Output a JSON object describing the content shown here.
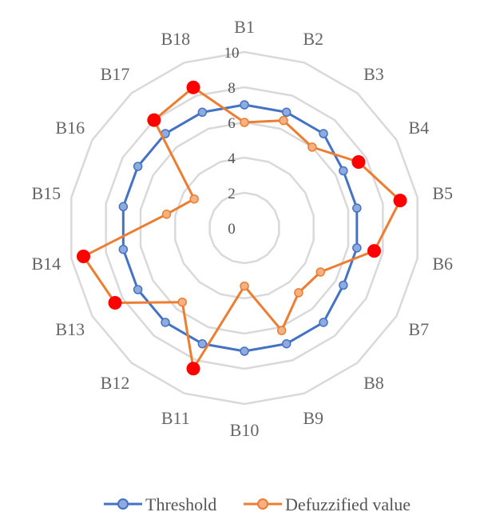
{
  "chart_data": {
    "type": "radar",
    "categories": [
      "B1",
      "B2",
      "B3",
      "B4",
      "B5",
      "B6",
      "B7",
      "B8",
      "B9",
      "B10",
      "B11",
      "B12",
      "B13",
      "B14",
      "B15",
      "B16",
      "B17",
      "B18"
    ],
    "rlim": [
      0,
      10
    ],
    "ticks": [
      0,
      2,
      4,
      6,
      8,
      10
    ],
    "grid": true,
    "legend_position": "bottom",
    "series": [
      {
        "name": "Threshold",
        "color": "#4472C4",
        "values": [
          7,
          7,
          7,
          6.5,
          6.5,
          6.5,
          6.5,
          7,
          7,
          7,
          7,
          7,
          7,
          7,
          7,
          7,
          7,
          7
        ]
      },
      {
        "name": "Defuzzified value",
        "color": "#ED7D31",
        "values": [
          6,
          6.5,
          6,
          7.5,
          9,
          7.5,
          5,
          4.8,
          6.2,
          3.3,
          8.5,
          5.5,
          8.5,
          9.3,
          4.5,
          3.3,
          8,
          8.5
        ],
        "highlight_indices": [
          3,
          4,
          5,
          10,
          12,
          13,
          16,
          17
        ],
        "highlight_color": "#FF0000"
      }
    ]
  }
}
